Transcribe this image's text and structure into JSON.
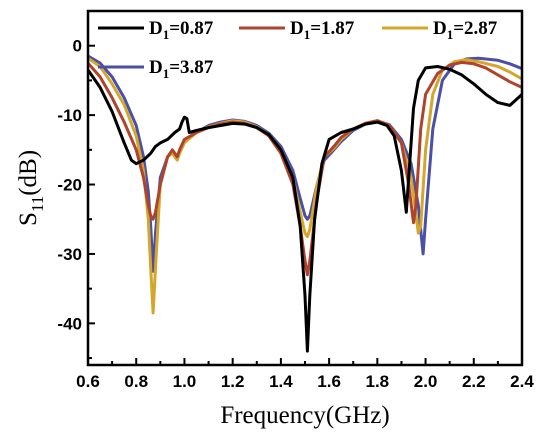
{
  "chart_data": {
    "type": "line",
    "title": "",
    "xlabel": "Frequency(GHz)",
    "ylabel": {
      "base": "S",
      "sub": "11",
      "rest": "(dB)"
    },
    "xlim": [
      0.6,
      2.4
    ],
    "ylim": [
      -46,
      5
    ],
    "x_ticks": [
      "0.6",
      "0.8",
      "1.0",
      "1.2",
      "1.4",
      "1.6",
      "1.8",
      "2.0",
      "2.2",
      "2.4"
    ],
    "y_ticks": [
      "0",
      "-10",
      "-20",
      "-30",
      "-40"
    ],
    "x_tick_values": [
      0.6,
      0.8,
      1.0,
      1.2,
      1.4,
      1.6,
      1.8,
      2.0,
      2.2,
      2.4
    ],
    "y_tick_values": [
      0,
      -10,
      -20,
      -30,
      -40
    ],
    "legend_position": "top",
    "grid": false,
    "series": [
      {
        "name": {
          "base": "D",
          "sub": "1",
          "rest": "=0.87"
        },
        "color": "#000000",
        "points": [
          [
            0.6,
            -3.5
          ],
          [
            0.65,
            -6
          ],
          [
            0.7,
            -9.5
          ],
          [
            0.75,
            -14
          ],
          [
            0.78,
            -16.5
          ],
          [
            0.8,
            -17
          ],
          [
            0.83,
            -16.5
          ],
          [
            0.86,
            -15.5
          ],
          [
            0.88,
            -14.5
          ],
          [
            0.9,
            -14
          ],
          [
            0.93,
            -13.5
          ],
          [
            0.96,
            -12.5
          ],
          [
            0.98,
            -12
          ],
          [
            0.99,
            -11
          ],
          [
            1.0,
            -10.3
          ],
          [
            1.01,
            -10.5
          ],
          [
            1.02,
            -12.5
          ],
          [
            1.05,
            -12.2
          ],
          [
            1.1,
            -11.8
          ],
          [
            1.15,
            -11.5
          ],
          [
            1.2,
            -11.2
          ],
          [
            1.25,
            -11.3
          ],
          [
            1.3,
            -11.8
          ],
          [
            1.35,
            -12.8
          ],
          [
            1.4,
            -15
          ],
          [
            1.45,
            -19
          ],
          [
            1.48,
            -26
          ],
          [
            1.5,
            -36
          ],
          [
            1.51,
            -44
          ],
          [
            1.52,
            -36
          ],
          [
            1.54,
            -25
          ],
          [
            1.57,
            -17
          ],
          [
            1.6,
            -13.5
          ],
          [
            1.65,
            -12.5
          ],
          [
            1.7,
            -12
          ],
          [
            1.75,
            -11.3
          ],
          [
            1.8,
            -11
          ],
          [
            1.84,
            -11.5
          ],
          [
            1.87,
            -13
          ],
          [
            1.9,
            -18
          ],
          [
            1.92,
            -24
          ],
          [
            1.93,
            -19
          ],
          [
            1.95,
            -9
          ],
          [
            1.97,
            -5
          ],
          [
            2.0,
            -3.2
          ],
          [
            2.05,
            -3
          ],
          [
            2.1,
            -3.4
          ],
          [
            2.15,
            -4.2
          ],
          [
            2.2,
            -5.5
          ],
          [
            2.25,
            -7
          ],
          [
            2.3,
            -8.2
          ],
          [
            2.35,
            -8.6
          ],
          [
            2.4,
            -7
          ]
        ]
      },
      {
        "name": {
          "base": "D",
          "sub": "1",
          "rest": "=1.87"
        },
        "color": "#b0432c",
        "points": [
          [
            0.6,
            -2.5
          ],
          [
            0.65,
            -4.5
          ],
          [
            0.7,
            -7.5
          ],
          [
            0.75,
            -11
          ],
          [
            0.8,
            -15
          ],
          [
            0.83,
            -19
          ],
          [
            0.85,
            -23
          ],
          [
            0.86,
            -24.5
          ],
          [
            0.87,
            -25
          ],
          [
            0.88,
            -24
          ],
          [
            0.9,
            -20
          ],
          [
            0.93,
            -16
          ],
          [
            0.95,
            -15
          ],
          [
            0.97,
            -16
          ],
          [
            0.98,
            -15
          ],
          [
            1.0,
            -13.5
          ],
          [
            1.05,
            -12.5
          ],
          [
            1.1,
            -11.8
          ],
          [
            1.15,
            -11.3
          ],
          [
            1.2,
            -11
          ],
          [
            1.25,
            -11.2
          ],
          [
            1.3,
            -11.8
          ],
          [
            1.35,
            -13
          ],
          [
            1.4,
            -15.5
          ],
          [
            1.45,
            -20
          ],
          [
            1.48,
            -26
          ],
          [
            1.5,
            -31
          ],
          [
            1.51,
            -33
          ],
          [
            1.52,
            -31
          ],
          [
            1.55,
            -22
          ],
          [
            1.58,
            -16
          ],
          [
            1.62,
            -14.5
          ],
          [
            1.65,
            -13.2
          ],
          [
            1.7,
            -12
          ],
          [
            1.75,
            -11.2
          ],
          [
            1.8,
            -10.8
          ],
          [
            1.85,
            -11.5
          ],
          [
            1.9,
            -14
          ],
          [
            1.93,
            -20
          ],
          [
            1.95,
            -25.5
          ],
          [
            1.96,
            -23
          ],
          [
            1.98,
            -12
          ],
          [
            2.0,
            -7
          ],
          [
            2.05,
            -4
          ],
          [
            2.1,
            -2.8
          ],
          [
            2.15,
            -2.4
          ],
          [
            2.2,
            -2.6
          ],
          [
            2.25,
            -3.2
          ],
          [
            2.3,
            -4.2
          ],
          [
            2.35,
            -5.2
          ],
          [
            2.4,
            -6
          ]
        ]
      },
      {
        "name": {
          "base": "D",
          "sub": "1",
          "rest": "=2.87"
        },
        "color": "#d4a62a",
        "points": [
          [
            0.6,
            -1.8
          ],
          [
            0.65,
            -3
          ],
          [
            0.7,
            -5.5
          ],
          [
            0.75,
            -8.5
          ],
          [
            0.8,
            -13
          ],
          [
            0.83,
            -18
          ],
          [
            0.85,
            -25
          ],
          [
            0.86,
            -32
          ],
          [
            0.87,
            -38.5
          ],
          [
            0.88,
            -32
          ],
          [
            0.9,
            -20
          ],
          [
            0.93,
            -16
          ],
          [
            0.95,
            -15.5
          ],
          [
            0.97,
            -16.5
          ],
          [
            0.98,
            -15.5
          ],
          [
            1.0,
            -14
          ],
          [
            1.05,
            -12.5
          ],
          [
            1.1,
            -11.7
          ],
          [
            1.15,
            -11.2
          ],
          [
            1.2,
            -10.8
          ],
          [
            1.25,
            -11
          ],
          [
            1.3,
            -11.7
          ],
          [
            1.35,
            -12.8
          ],
          [
            1.4,
            -15
          ],
          [
            1.45,
            -19
          ],
          [
            1.48,
            -24
          ],
          [
            1.5,
            -27
          ],
          [
            1.51,
            -27.5
          ],
          [
            1.52,
            -26.5
          ],
          [
            1.55,
            -20
          ],
          [
            1.58,
            -16
          ],
          [
            1.62,
            -14.8
          ],
          [
            1.65,
            -13.5
          ],
          [
            1.7,
            -12
          ],
          [
            1.75,
            -11.2
          ],
          [
            1.8,
            -10.8
          ],
          [
            1.85,
            -11.5
          ],
          [
            1.9,
            -14
          ],
          [
            1.94,
            -19
          ],
          [
            1.97,
            -27
          ],
          [
            1.98,
            -26
          ],
          [
            2.0,
            -15
          ],
          [
            2.03,
            -7
          ],
          [
            2.07,
            -3.5
          ],
          [
            2.12,
            -2.3
          ],
          [
            2.17,
            -2
          ],
          [
            2.22,
            -2.3
          ],
          [
            2.3,
            -3
          ],
          [
            2.35,
            -3.8
          ],
          [
            2.4,
            -4.8
          ]
        ]
      },
      {
        "name": {
          "base": "D",
          "sub": "1",
          "rest": "=3.87"
        },
        "color": "#4a4fa8",
        "points": [
          [
            0.6,
            -1.5
          ],
          [
            0.65,
            -2.5
          ],
          [
            0.7,
            -4.5
          ],
          [
            0.75,
            -7.5
          ],
          [
            0.8,
            -11.5
          ],
          [
            0.83,
            -16
          ],
          [
            0.85,
            -21
          ],
          [
            0.86,
            -26
          ],
          [
            0.87,
            -32.5
          ],
          [
            0.88,
            -27
          ],
          [
            0.9,
            -19
          ],
          [
            0.93,
            -16
          ],
          [
            0.95,
            -15.3
          ],
          [
            0.97,
            -16
          ],
          [
            0.98,
            -15.3
          ],
          [
            1.0,
            -13.8
          ],
          [
            1.05,
            -12.5
          ],
          [
            1.1,
            -11.5
          ],
          [
            1.15,
            -11
          ],
          [
            1.2,
            -10.7
          ],
          [
            1.25,
            -10.9
          ],
          [
            1.3,
            -11.5
          ],
          [
            1.35,
            -12.6
          ],
          [
            1.4,
            -14.5
          ],
          [
            1.45,
            -18
          ],
          [
            1.48,
            -22
          ],
          [
            1.5,
            -24.5
          ],
          [
            1.51,
            -25
          ],
          [
            1.52,
            -24.5
          ],
          [
            1.55,
            -20
          ],
          [
            1.58,
            -16.5
          ],
          [
            1.62,
            -15
          ],
          [
            1.65,
            -13.8
          ],
          [
            1.7,
            -12.2
          ],
          [
            1.75,
            -11.3
          ],
          [
            1.8,
            -10.8
          ],
          [
            1.85,
            -11.4
          ],
          [
            1.9,
            -13.5
          ],
          [
            1.94,
            -17
          ],
          [
            1.97,
            -23
          ],
          [
            1.99,
            -30
          ],
          [
            2.0,
            -25
          ],
          [
            2.03,
            -12
          ],
          [
            2.07,
            -5
          ],
          [
            2.12,
            -2.6
          ],
          [
            2.17,
            -1.9
          ],
          [
            2.22,
            -1.8
          ],
          [
            2.3,
            -2.1
          ],
          [
            2.35,
            -2.6
          ],
          [
            2.4,
            -3.3
          ]
        ]
      }
    ]
  }
}
